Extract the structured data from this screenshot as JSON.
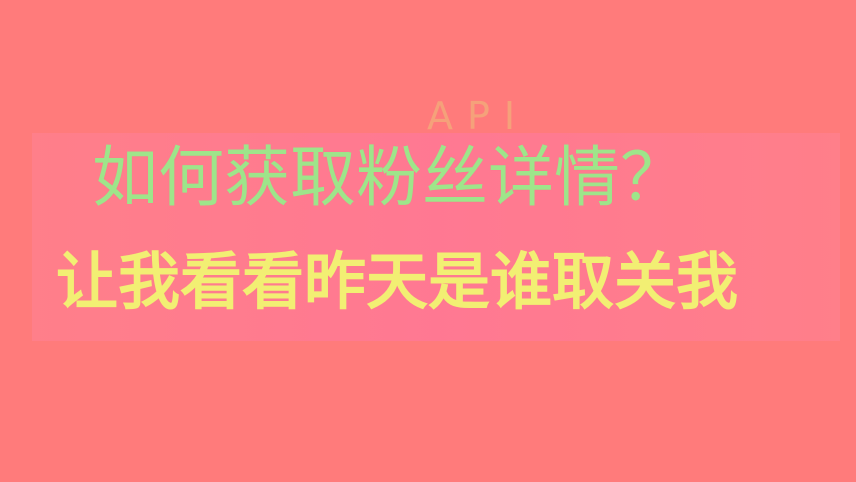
{
  "header": {
    "tag": "API",
    "title": "如何获取粉丝详情？",
    "subtitle": "让我看看昨天是谁取关我"
  },
  "colors": {
    "background": "#ff7b7b",
    "band": "#ff86a0",
    "tag": "#f5a17a",
    "title": "#9ee58a",
    "subtitle": "#f2ef73"
  }
}
